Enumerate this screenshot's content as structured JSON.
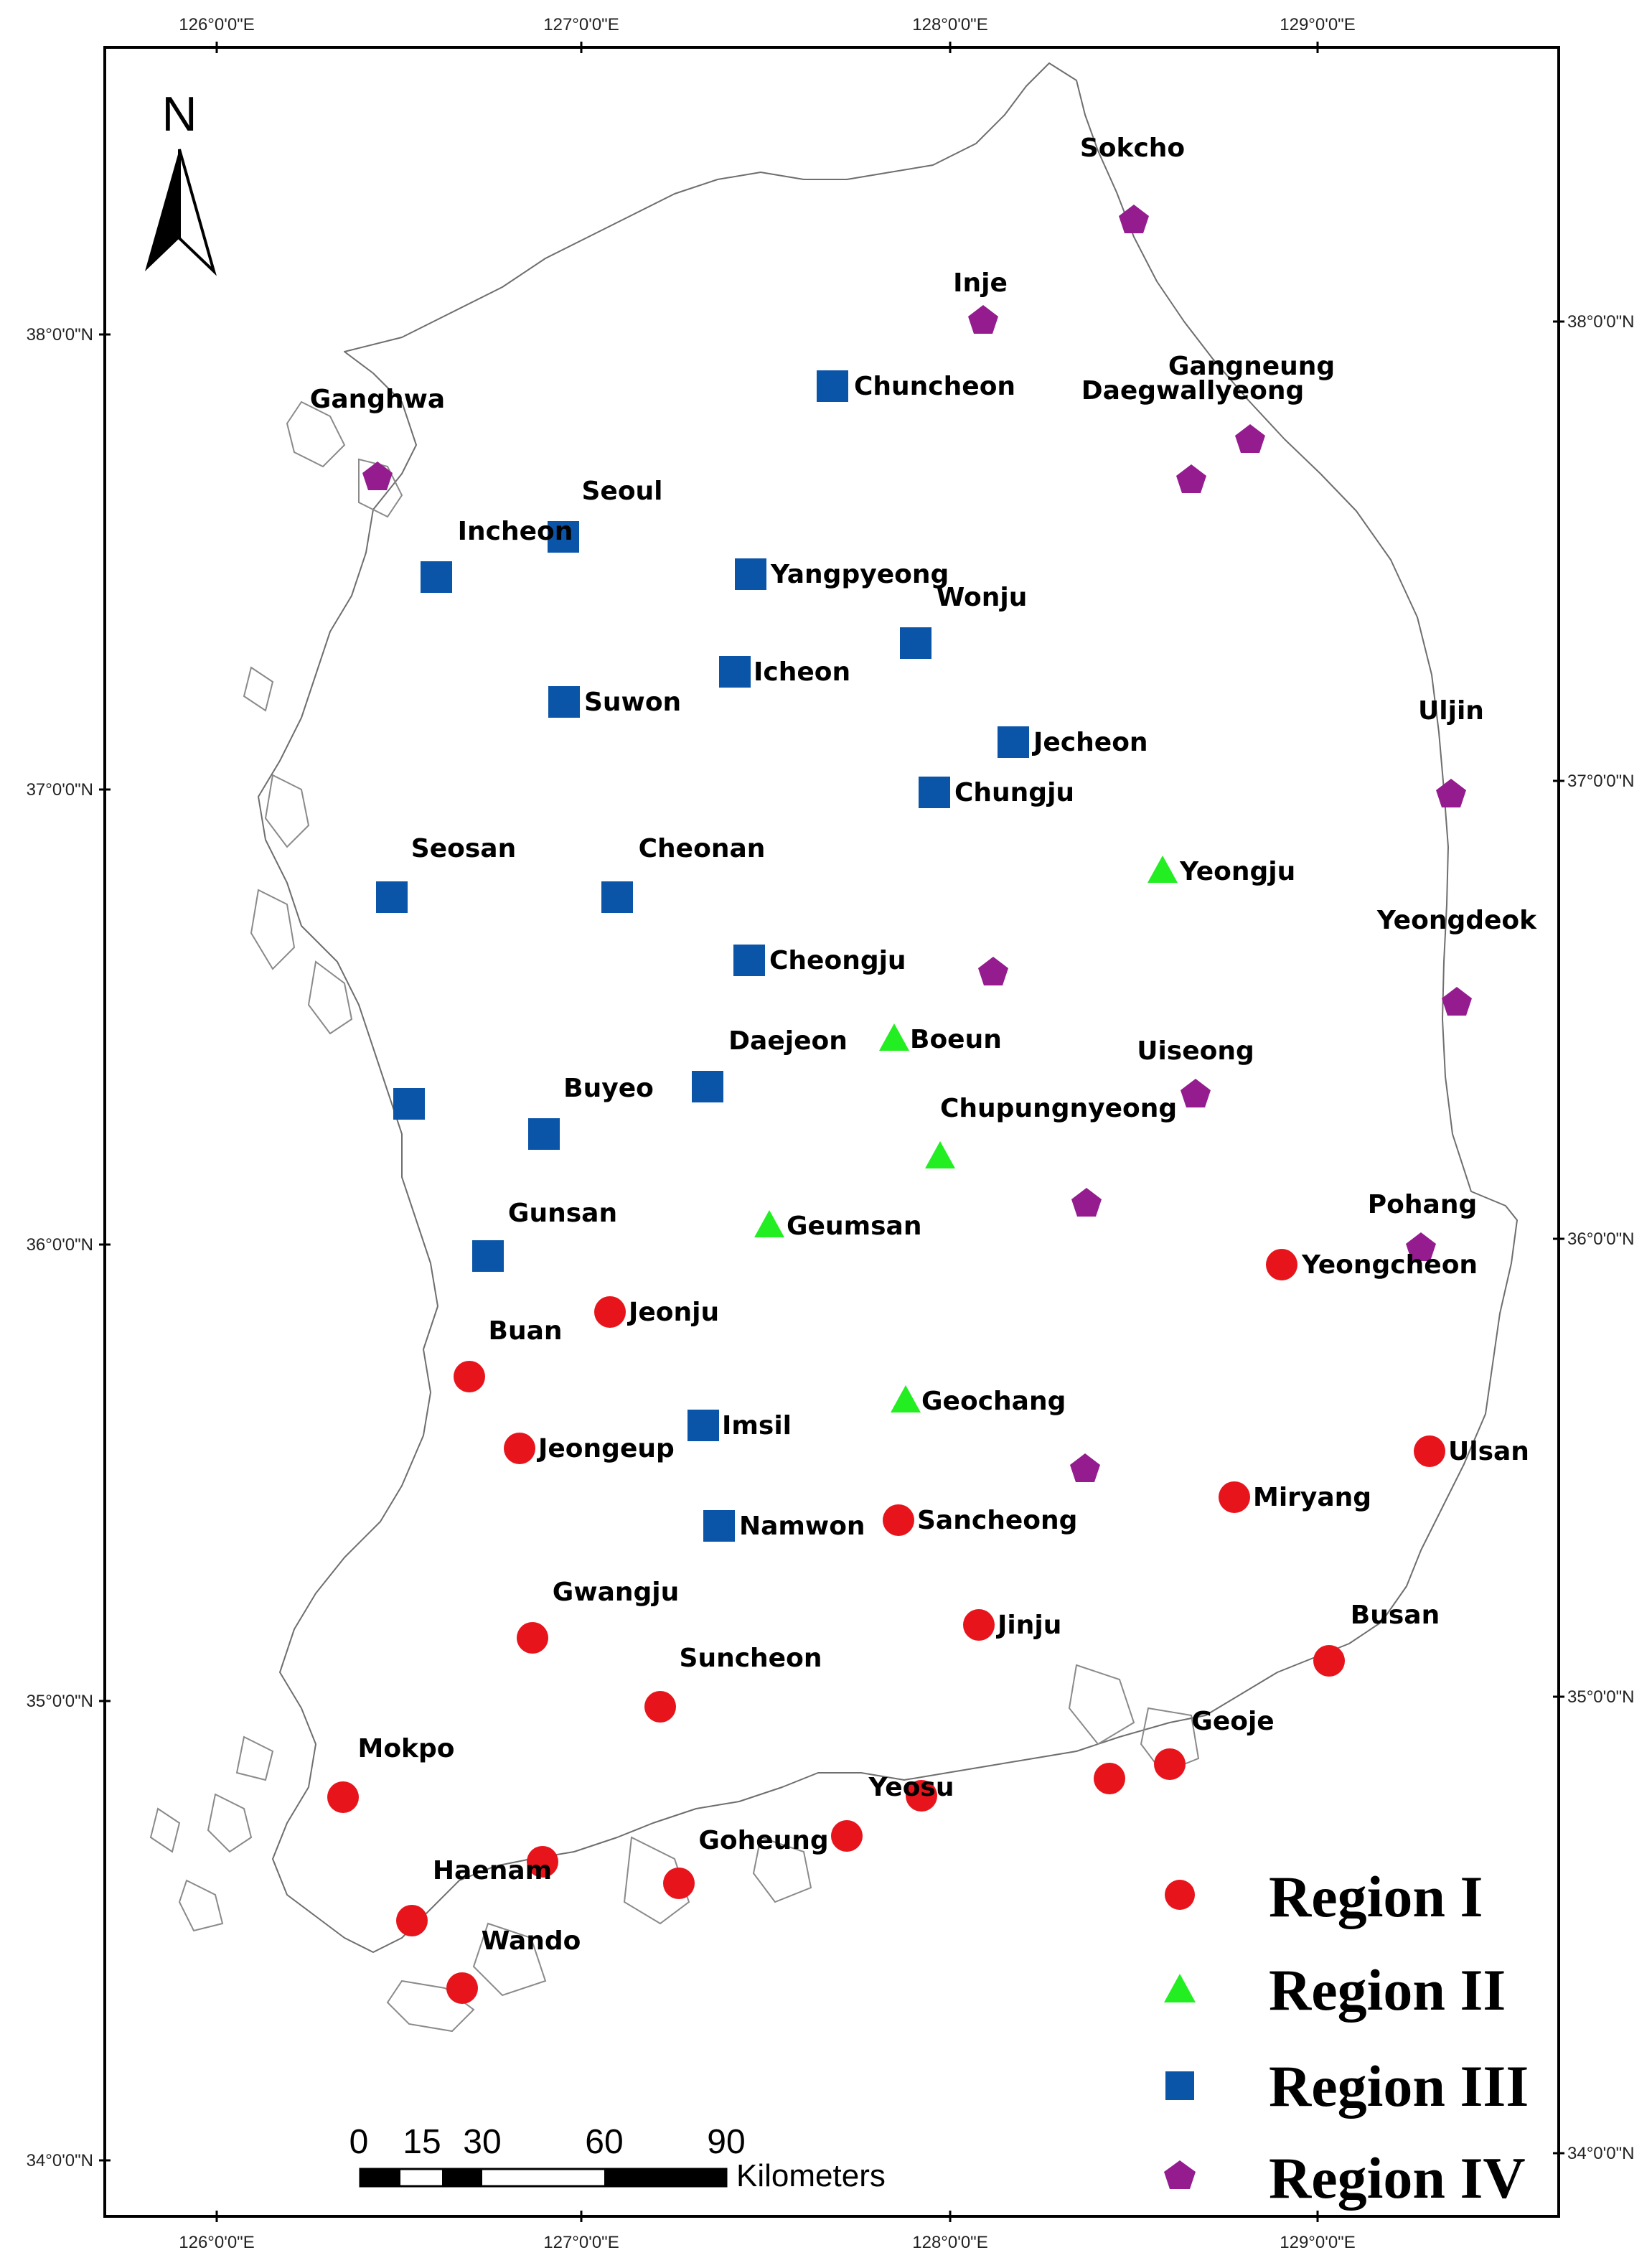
{
  "grid": {
    "lon_labels": [
      "126°0'0\"E",
      "127°0'0\"E",
      "128°0'0\"E",
      "129°0'0\"E"
    ],
    "lat_labels": [
      "38°0'0\"N",
      "37°0'0\"N",
      "36°0'0\"N",
      "35°0'0\"N",
      "34°0'0\"N"
    ]
  },
  "north_arrow": {
    "letter": "N"
  },
  "scale_bar": {
    "ticks": [
      "0",
      "15",
      "30",
      "60",
      "90"
    ],
    "unit": "Kilometers"
  },
  "legend": [
    {
      "label": "Region I",
      "symbol": "circle",
      "color": "#e8141b"
    },
    {
      "label": "Region II",
      "symbol": "triangle",
      "color": "#22ee22"
    },
    {
      "label": "Region III",
      "symbol": "square",
      "color": "#0b55a9"
    },
    {
      "label": "Region IV",
      "symbol": "pentagon",
      "color": "#941c8f"
    }
  ],
  "stations": [
    {
      "name": "Sokcho",
      "region": "IV"
    },
    {
      "name": "Inje",
      "region": "IV"
    },
    {
      "name": "Gangneung",
      "region": "IV"
    },
    {
      "name": "Daegwallyeong",
      "region": "IV"
    },
    {
      "name": "Ganghwa",
      "region": "IV"
    },
    {
      "name": "Uljin",
      "region": "IV"
    },
    {
      "name": "Yeongdeok",
      "region": "IV"
    },
    {
      "name": "Uiseong",
      "region": "IV"
    },
    {
      "name": "Pohang",
      "region": "IV"
    },
    {
      "name": "",
      "region": "IV"
    },
    {
      "name": "",
      "region": "IV"
    },
    {
      "name": "",
      "region": "IV"
    },
    {
      "name": "Chuncheon",
      "region": "III"
    },
    {
      "name": "Seoul",
      "region": "III"
    },
    {
      "name": "Incheon",
      "region": "III"
    },
    {
      "name": "Yangpyeong",
      "region": "III"
    },
    {
      "name": "Wonju",
      "region": "III"
    },
    {
      "name": "Icheon",
      "region": "III"
    },
    {
      "name": "Suwon",
      "region": "III"
    },
    {
      "name": "Jecheon",
      "region": "III"
    },
    {
      "name": "Chungju",
      "region": "III"
    },
    {
      "name": "Seosan",
      "region": "III"
    },
    {
      "name": "Cheonan",
      "region": "III"
    },
    {
      "name": "Cheongju",
      "region": "III"
    },
    {
      "name": "Daejeon",
      "region": "III"
    },
    {
      "name": "Buyeo",
      "region": "III"
    },
    {
      "name": "",
      "region": "III"
    },
    {
      "name": "Gunsan",
      "region": "III"
    },
    {
      "name": "Imsil",
      "region": "III"
    },
    {
      "name": "Namwon",
      "region": "III"
    },
    {
      "name": "Yeongju",
      "region": "II"
    },
    {
      "name": "Boeun",
      "region": "II"
    },
    {
      "name": "Chupungnyeong",
      "region": "II"
    },
    {
      "name": "Geumsan",
      "region": "II"
    },
    {
      "name": "Geochang",
      "region": "II"
    },
    {
      "name": "Yeongcheon",
      "region": "I"
    },
    {
      "name": "Jeonju",
      "region": "I"
    },
    {
      "name": "Buan",
      "region": "I"
    },
    {
      "name": "Jeongeup",
      "region": "I"
    },
    {
      "name": "Ulsan",
      "region": "I"
    },
    {
      "name": "Miryang",
      "region": "I"
    },
    {
      "name": "Sancheong",
      "region": "I"
    },
    {
      "name": "Gwangju",
      "region": "I"
    },
    {
      "name": "Jinju",
      "region": "I"
    },
    {
      "name": "Busan",
      "region": "I"
    },
    {
      "name": "Suncheon",
      "region": "I"
    },
    {
      "name": "Mokpo",
      "region": "I"
    },
    {
      "name": "Geoje",
      "region": "I"
    },
    {
      "name": "",
      "region": "I"
    },
    {
      "name": "Yeosu",
      "region": "I"
    },
    {
      "name": "",
      "region": "I"
    },
    {
      "name": "Goheung",
      "region": "I"
    },
    {
      "name": "",
      "region": "I"
    },
    {
      "name": "Haenam",
      "region": "I"
    },
    {
      "name": "Wando",
      "region": "I"
    }
  ]
}
